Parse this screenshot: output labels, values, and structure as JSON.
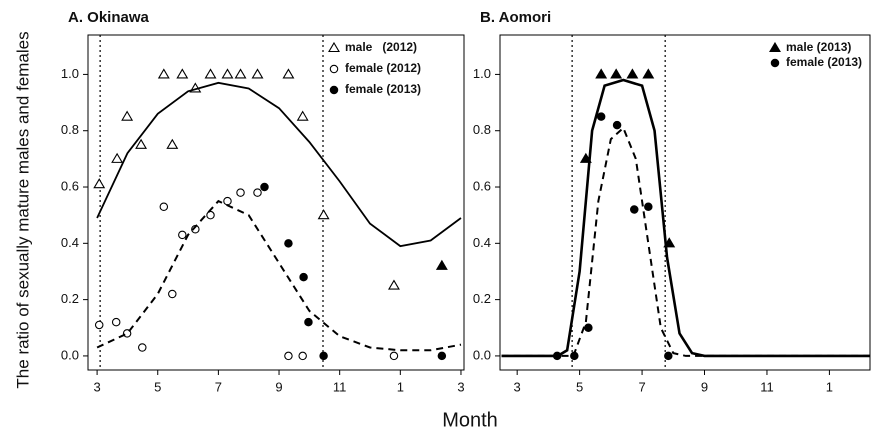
{
  "ylabel": "The ratio of sexually mature males and females",
  "xlabel": "Month",
  "chart_data": [
    {
      "type": "scatter",
      "title": "A. Okinawa",
      "xlim": [
        2.7,
        15.1
      ],
      "ylim": [
        -0.05,
        1.14
      ],
      "xticks": [
        3,
        5,
        7,
        9,
        11,
        {
          "value": 13,
          "label": "1"
        },
        {
          "value": 15,
          "label": "3"
        }
      ],
      "yticks": [
        {
          "value": 0,
          "label": "0.0"
        },
        {
          "value": 0.2,
          "label": "0.2"
        },
        {
          "value": 0.4,
          "label": "0.4"
        },
        {
          "value": 0.6,
          "label": "0.6"
        },
        {
          "value": 0.8,
          "label": "0.8"
        },
        {
          "value": 1,
          "label": "1.0"
        }
      ],
      "vlines": [
        3.1,
        10.45
      ],
      "legend": "upper right",
      "series": [
        {
          "name": "male   (2012)",
          "style": "triangle-open",
          "color": "#000000",
          "x": [
            3.07,
            3.66,
            3.99,
            4.45,
            5.2,
            5.48,
            5.81,
            6.24,
            6.74,
            7.3,
            7.73,
            8.29,
            9.31,
            9.78,
            10.47,
            12.79
          ],
          "values": [
            0.61,
            0.7,
            0.85,
            0.75,
            1.0,
            0.75,
            1.0,
            0.95,
            1.0,
            1.0,
            1.0,
            1.0,
            1.0,
            0.85,
            0.5,
            0.25
          ]
        },
        {
          "name": "female (2012)",
          "style": "circle-open",
          "color": "#000000",
          "x": [
            3.07,
            3.63,
            3.99,
            4.49,
            5.2,
            5.48,
            5.81,
            6.24,
            6.74,
            7.3,
            7.73,
            8.29,
            9.31,
            9.78,
            12.79
          ],
          "values": [
            0.11,
            0.12,
            0.08,
            0.03,
            0.53,
            0.22,
            0.43,
            0.45,
            0.5,
            0.55,
            0.58,
            0.58,
            0,
            0,
            0
          ]
        },
        {
          "name": "female (2013)",
          "style": "circle-filled",
          "color": "#000000",
          "x": [
            8.52,
            9.31,
            9.81,
            9.97,
            10.47,
            14.37
          ],
          "values": [
            0.6,
            0.4,
            0.28,
            0.12,
            0,
            0
          ]
        },
        {
          "style": "triangle-filled",
          "color": "#000000",
          "x": [
            14.37
          ],
          "values": [
            0.32
          ]
        },
        {
          "style": "line-solid",
          "color": "#000000",
          "x": [
            3,
            4,
            5,
            6,
            7,
            8,
            9,
            10,
            11,
            12,
            13,
            14,
            15
          ],
          "values": [
            0.49,
            0.72,
            0.86,
            0.94,
            0.97,
            0.95,
            0.88,
            0.76,
            0.62,
            0.47,
            0.39,
            0.41,
            0.49
          ]
        },
        {
          "style": "line-dashed",
          "color": "#000000",
          "x": [
            3,
            4,
            5,
            6,
            7,
            8,
            9,
            10,
            11,
            12,
            13,
            14,
            15
          ],
          "values": [
            0.03,
            0.08,
            0.22,
            0.43,
            0.55,
            0.5,
            0.33,
            0.16,
            0.07,
            0.03,
            0.02,
            0.02,
            0.04
          ]
        }
      ]
    },
    {
      "type": "scatter",
      "title": "B. Aomori",
      "xlim": [
        2.45,
        14.3
      ],
      "ylim": [
        -0.05,
        1.14
      ],
      "xticks": [
        3,
        5,
        7,
        9,
        11,
        {
          "value": 13,
          "label": "1"
        }
      ],
      "yticks": [
        {
          "value": 0,
          "label": "0.0"
        },
        {
          "value": 0.2,
          "label": "0.2"
        },
        {
          "value": 0.4,
          "label": "0.4"
        },
        {
          "value": 0.6,
          "label": "0.6"
        },
        {
          "value": 0.8,
          "label": "0.8"
        },
        {
          "value": 1,
          "label": "1.0"
        }
      ],
      "vlines": [
        4.76,
        7.74
      ],
      "legend": "upper right",
      "series": [
        {
          "name": "male (2013)",
          "style": "triangle-filled",
          "color": "#000000",
          "x": [
            5.2,
            5.69,
            6.17,
            6.69,
            7.2,
            7.87
          ],
          "values": [
            0.7,
            1.0,
            1.0,
            1.0,
            1.0,
            0.4
          ]
        },
        {
          "name": "female (2013)",
          "style": "circle-filled",
          "color": "#000000",
          "x": [
            4.28,
            4.83,
            5.28,
            5.69,
            6.2,
            6.75,
            7.2,
            7.84
          ],
          "values": [
            0,
            0,
            0.1,
            0.85,
            0.82,
            0.52,
            0.53,
            0
          ]
        },
        {
          "style": "line-solid",
          "color": "#000000",
          "x": [
            2.5,
            4.3,
            4.6,
            5,
            5.4,
            5.8,
            6.4,
            7,
            7.4,
            7.8,
            8.2,
            8.6,
            9,
            14.3
          ],
          "values": [
            0,
            0,
            0.02,
            0.3,
            0.8,
            0.96,
            0.98,
            0.96,
            0.8,
            0.35,
            0.08,
            0.01,
            0,
            0
          ]
        },
        {
          "style": "line-dashed",
          "color": "#000000",
          "x": [
            2.5,
            4.8,
            5.2,
            5.6,
            6,
            6.4,
            6.8,
            7.2,
            7.6,
            8,
            8.4,
            14.3
          ],
          "values": [
            0,
            0,
            0.12,
            0.55,
            0.77,
            0.81,
            0.7,
            0.4,
            0.1,
            0.01,
            0,
            0
          ]
        }
      ]
    }
  ]
}
